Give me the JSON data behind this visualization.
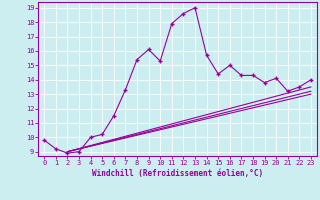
{
  "xlabel": "Windchill (Refroidissement éolien,°C)",
  "bg_color": "#cceef0",
  "line_color": "#990099",
  "grid_color": "#ffffff",
  "xlim": [
    -0.5,
    23.5
  ],
  "ylim": [
    8.7,
    19.4
  ],
  "xticks": [
    0,
    1,
    2,
    3,
    4,
    5,
    6,
    7,
    8,
    9,
    10,
    11,
    12,
    13,
    14,
    15,
    16,
    17,
    18,
    19,
    20,
    21,
    22,
    23
  ],
  "yticks": [
    9,
    10,
    11,
    12,
    13,
    14,
    15,
    16,
    17,
    18,
    19
  ],
  "main_x": [
    0,
    1,
    2,
    3,
    4,
    5,
    6,
    7,
    8,
    9,
    10,
    11,
    12,
    13,
    14,
    15,
    16,
    17,
    18,
    19,
    20,
    21,
    22,
    23
  ],
  "main_y": [
    9.8,
    9.2,
    8.9,
    9.0,
    10.0,
    10.2,
    11.5,
    13.3,
    15.4,
    16.1,
    15.3,
    17.9,
    18.6,
    19.0,
    15.7,
    14.4,
    15.0,
    14.3,
    14.3,
    13.8,
    14.1,
    13.2,
    13.5,
    14.0
  ],
  "line2_x": [
    2,
    23
  ],
  "line2_y": [
    9.0,
    13.2
  ],
  "line3_x": [
    2,
    23
  ],
  "line3_y": [
    9.0,
    13.5
  ],
  "line4_x": [
    2,
    23
  ],
  "line4_y": [
    9.0,
    13.0
  ]
}
